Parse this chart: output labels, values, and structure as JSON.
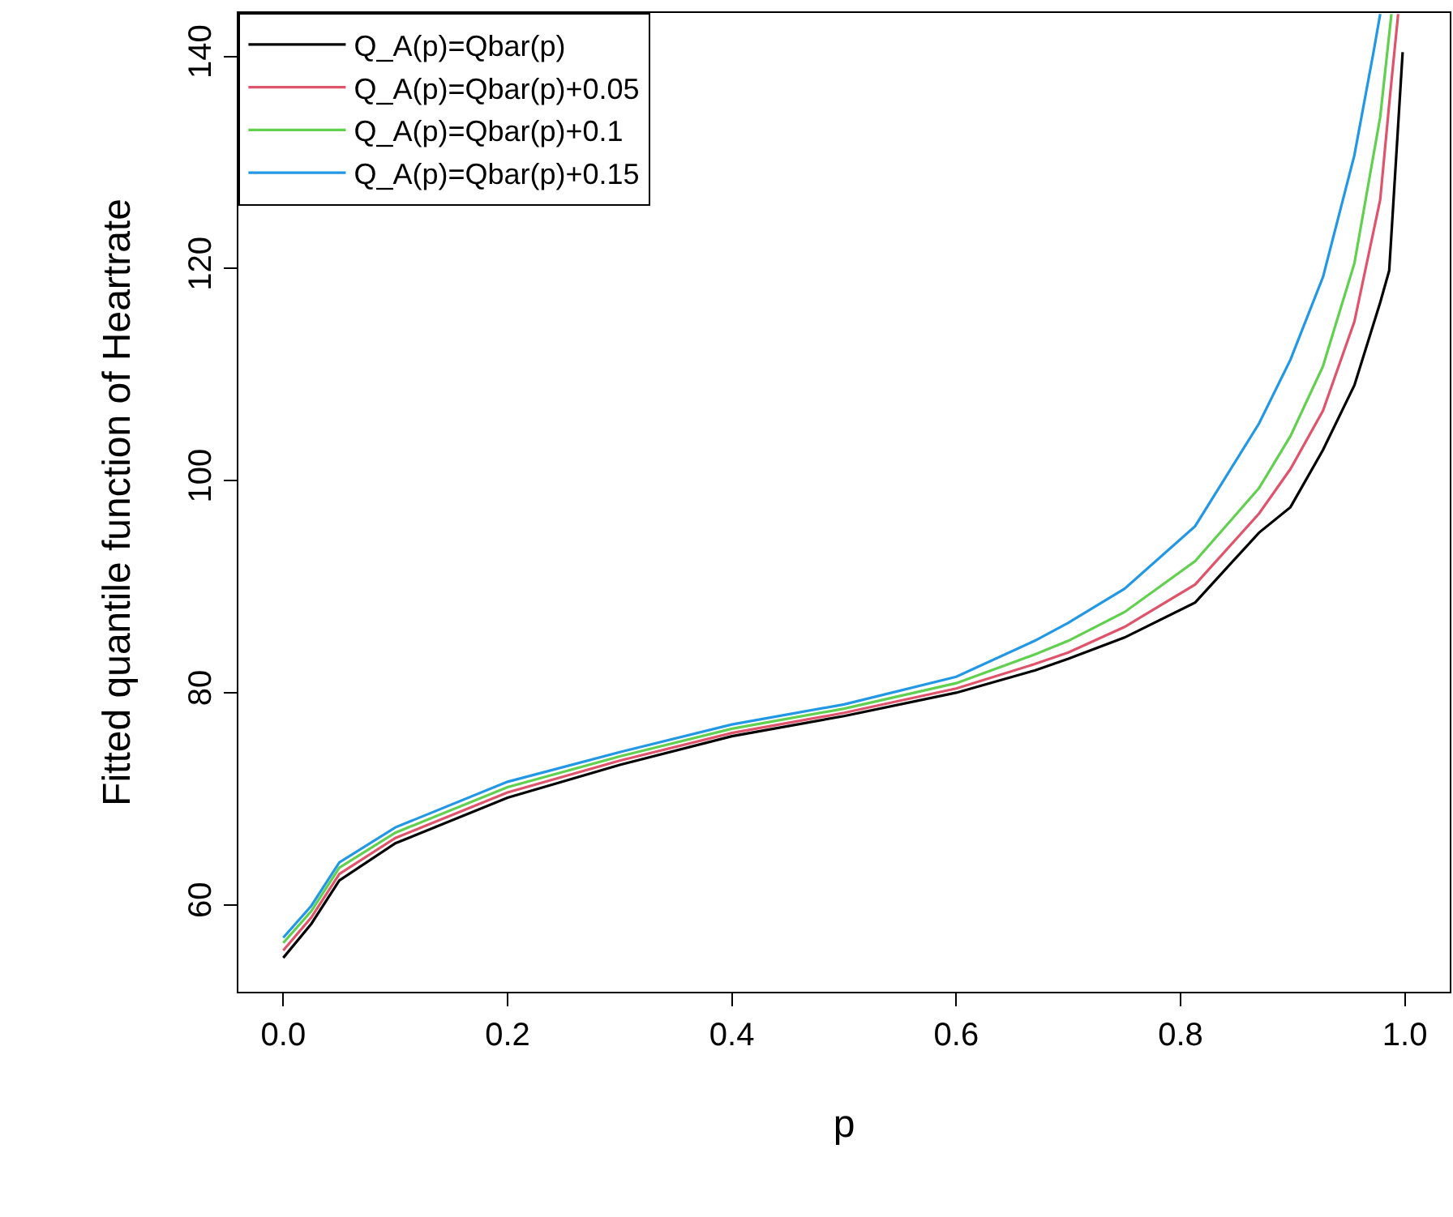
{
  "chart_data": {
    "type": "line",
    "xlabel": "p",
    "ylabel": "Fitted quantile function of Heartrate",
    "xlim": [
      -0.04,
      1.04
    ],
    "ylim": [
      51.8,
      144.1
    ],
    "xticks": [
      {
        "value": 0,
        "label": "0.0"
      },
      {
        "value": 0.2,
        "label": "0.2"
      },
      {
        "value": 0.4,
        "label": "0.4"
      },
      {
        "value": 0.6,
        "label": "0.6"
      },
      {
        "value": 0.8,
        "label": "0.8"
      },
      {
        "value": 1,
        "label": "1.0"
      }
    ],
    "yticks": [
      60,
      80,
      100,
      120,
      140
    ],
    "grid": false,
    "legend": "top left",
    "marker": "none",
    "line_style": "solid",
    "series": [
      {
        "name": "Q_A(p)=Qbar(p)",
        "color": "#000000",
        "x": [
          0,
          0.025,
          0.05,
          0.1,
          0.2,
          0.3,
          0.4,
          0.5,
          0.6,
          0.67,
          0.7,
          0.75,
          0.813,
          0.87,
          0.898,
          0.927,
          0.955,
          0.978,
          0.986,
          0.998
        ],
        "values": [
          55.0,
          58.2,
          62.3,
          65.8,
          70.1,
          73.2,
          75.9,
          77.8,
          80.0,
          82.1,
          83.2,
          85.2,
          88.5,
          95.1,
          97.5,
          102.9,
          109.0,
          116.8,
          119.8,
          140.4
        ]
      },
      {
        "name": "Q_A(p)=Qbar(p)+0.05",
        "color": "#df536b",
        "x": [
          0,
          0.025,
          0.05,
          0.1,
          0.2,
          0.3,
          0.4,
          0.5,
          0.6,
          0.67,
          0.7,
          0.75,
          0.813,
          0.87,
          0.898,
          0.927,
          0.955,
          0.978,
          0.986,
          0.994
        ],
        "values": [
          55.7,
          58.8,
          62.9,
          66.3,
          70.6,
          73.6,
          76.2,
          78.1,
          80.4,
          82.7,
          83.8,
          86.2,
          90.2,
          96.9,
          101.1,
          106.6,
          115.0,
          126.5,
          135.5,
          144.0
        ]
      },
      {
        "name": "Q_A(p)=Qbar(p)+0.1",
        "color": "#61d04f",
        "x": [
          0,
          0.025,
          0.05,
          0.1,
          0.2,
          0.3,
          0.4,
          0.5,
          0.6,
          0.67,
          0.7,
          0.75,
          0.813,
          0.87,
          0.898,
          0.927,
          0.955,
          0.978,
          0.988
        ],
        "values": [
          56.4,
          59.4,
          63.5,
          66.8,
          71.1,
          74.0,
          76.6,
          78.5,
          80.9,
          83.6,
          84.9,
          87.6,
          92.4,
          99.3,
          104.2,
          110.8,
          120.5,
          134.3,
          144.0
        ]
      },
      {
        "name": "Q_A(p)=Qbar(p)+0.15",
        "color": "#2297e6",
        "x": [
          0,
          0.025,
          0.05,
          0.1,
          0.2,
          0.3,
          0.4,
          0.5,
          0.6,
          0.67,
          0.7,
          0.75,
          0.813,
          0.87,
          0.898,
          0.927,
          0.955,
          0.972,
          0.978
        ],
        "values": [
          56.9,
          59.9,
          64.0,
          67.3,
          71.6,
          74.4,
          77.0,
          78.9,
          81.5,
          84.9,
          86.6,
          89.8,
          95.7,
          105.4,
          111.4,
          119.2,
          130.7,
          140.4,
          144.0
        ]
      }
    ]
  }
}
